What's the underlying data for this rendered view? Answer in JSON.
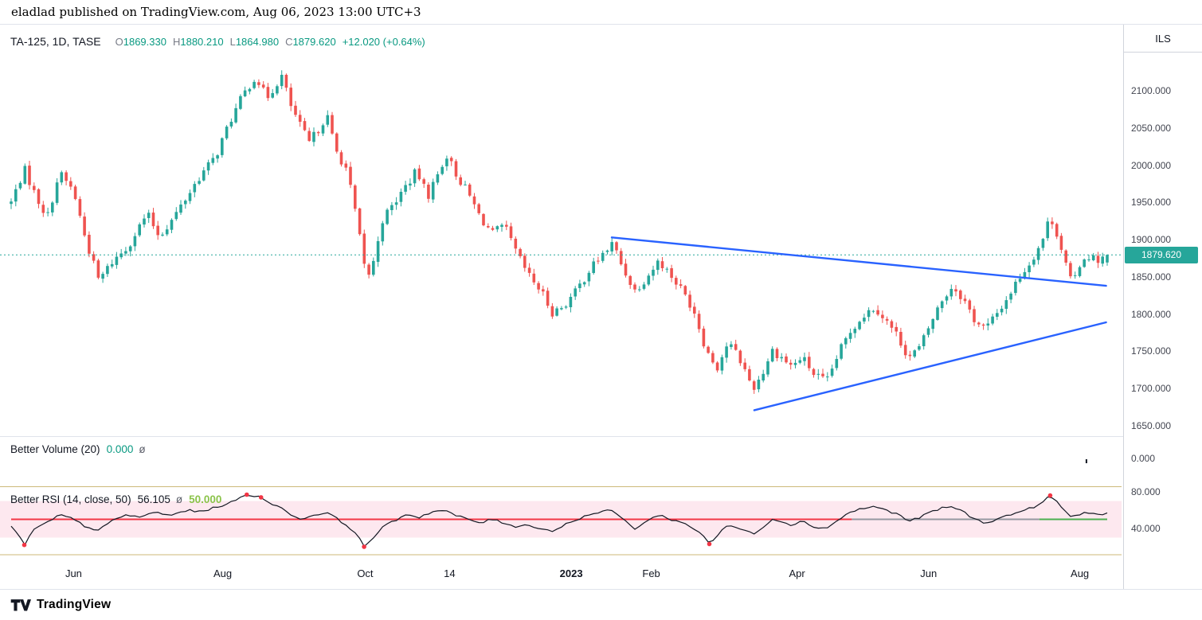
{
  "header": {
    "text": "eladlad published on TradingView.com, Aug 06, 2023 13:00 UTC+3"
  },
  "legend": {
    "symbol": "TA-125, 1D, TASE",
    "ohlc": [
      {
        "label": "O",
        "value": "1869.330"
      },
      {
        "label": "H",
        "value": "1880.210"
      },
      {
        "label": "L",
        "value": "1864.980"
      },
      {
        "label": "C",
        "value": "1879.620"
      }
    ],
    "change": "+12.020 (+0.64%)"
  },
  "price_axis": {
    "currency": "ILS",
    "labels": [
      "2100.000",
      "2050.000",
      "2000.000",
      "1950.000",
      "1900.000",
      "1850.000",
      "1800.000",
      "1750.000",
      "1700.000",
      "1650.000"
    ],
    "last_price": "1879.620"
  },
  "volume_panel": {
    "title": "Better Volume (20)",
    "value": "0.000",
    "avg_symbol": "ø",
    "axis_label": "0.000"
  },
  "rsi_panel": {
    "title": "Better RSI (14, close, 50)",
    "value": "56.105",
    "avg_symbol": "ø",
    "level_value": "50.000",
    "axis_labels": [
      "80.000",
      "40.000"
    ]
  },
  "time_axis": {
    "labels": [
      {
        "text": "Jun",
        "f": 0.057
      },
      {
        "text": "Aug",
        "f": 0.193
      },
      {
        "text": "Oct",
        "f": 0.323
      },
      {
        "text": "14",
        "f": 0.4
      },
      {
        "text": "2023",
        "f": 0.511,
        "bold": true
      },
      {
        "text": "Feb",
        "f": 0.584
      },
      {
        "text": "Apr",
        "f": 0.717
      },
      {
        "text": "Jun",
        "f": 0.837
      },
      {
        "text": "Aug",
        "f": 0.975
      }
    ]
  },
  "footer": {
    "brand": "TradingView"
  },
  "chart_data": {
    "type": "candlestick",
    "title": "TA-125 daily candlestick chart with converging triangle trendlines",
    "symbol": "TA-125",
    "timeframe": "1D",
    "exchange": "TASE",
    "currency": "ILS",
    "grid": false,
    "y_range": [
      1650,
      2100
    ],
    "last": {
      "o": 1869.33,
      "h": 1880.21,
      "l": 1864.98,
      "c": 1879.62,
      "change": 12.02,
      "change_pct": 0.64
    },
    "candle_count": 240,
    "price_path": [
      [
        0.0,
        1950
      ],
      [
        0.012,
        1995
      ],
      [
        0.022,
        1960
      ],
      [
        0.033,
        1930
      ],
      [
        0.044,
        1990
      ],
      [
        0.057,
        1965
      ],
      [
        0.068,
        1900
      ],
      [
        0.08,
        1845
      ],
      [
        0.092,
        1870
      ],
      [
        0.106,
        1890
      ],
      [
        0.118,
        1920
      ],
      [
        0.124,
        1935
      ],
      [
        0.135,
        1905
      ],
      [
        0.146,
        1925
      ],
      [
        0.157,
        1950
      ],
      [
        0.172,
        1985
      ],
      [
        0.186,
        2010
      ],
      [
        0.2,
        2060
      ],
      [
        0.212,
        2095
      ],
      [
        0.223,
        2120
      ],
      [
        0.233,
        2090
      ],
      [
        0.247,
        2120
      ],
      [
        0.255,
        2080
      ],
      [
        0.263,
        2055
      ],
      [
        0.272,
        2030
      ],
      [
        0.281,
        2050
      ],
      [
        0.288,
        2068
      ],
      [
        0.296,
        2020
      ],
      [
        0.306,
        1995
      ],
      [
        0.315,
        1930
      ],
      [
        0.322,
        1865
      ],
      [
        0.328,
        1850
      ],
      [
        0.338,
        1925
      ],
      [
        0.35,
        1950
      ],
      [
        0.36,
        1972
      ],
      [
        0.37,
        1992
      ],
      [
        0.38,
        1958
      ],
      [
        0.39,
        1990
      ],
      [
        0.397,
        2015
      ],
      [
        0.406,
        1988
      ],
      [
        0.417,
        1962
      ],
      [
        0.428,
        1930
      ],
      [
        0.439,
        1908
      ],
      [
        0.45,
        1918
      ],
      [
        0.461,
        1882
      ],
      [
        0.472,
        1852
      ],
      [
        0.483,
        1832
      ],
      [
        0.494,
        1802
      ],
      [
        0.505,
        1812
      ],
      [
        0.516,
        1832
      ],
      [
        0.527,
        1858
      ],
      [
        0.538,
        1878
      ],
      [
        0.549,
        1895
      ],
      [
        0.558,
        1862
      ],
      [
        0.569,
        1832
      ],
      [
        0.58,
        1850
      ],
      [
        0.591,
        1872
      ],
      [
        0.602,
        1852
      ],
      [
        0.613,
        1830
      ],
      [
        0.623,
        1805
      ],
      [
        0.634,
        1752
      ],
      [
        0.644,
        1728
      ],
      [
        0.654,
        1762
      ],
      [
        0.664,
        1742
      ],
      [
        0.677,
        1700
      ],
      [
        0.686,
        1722
      ],
      [
        0.694,
        1752
      ],
      [
        0.703,
        1742
      ],
      [
        0.712,
        1730
      ],
      [
        0.722,
        1742
      ],
      [
        0.732,
        1720
      ],
      [
        0.744,
        1708
      ],
      [
        0.755,
        1748
      ],
      [
        0.766,
        1778
      ],
      [
        0.777,
        1798
      ],
      [
        0.788,
        1810
      ],
      [
        0.798,
        1792
      ],
      [
        0.808,
        1772
      ],
      [
        0.819,
        1742
      ],
      [
        0.829,
        1755
      ],
      [
        0.839,
        1788
      ],
      [
        0.849,
        1818
      ],
      [
        0.859,
        1838
      ],
      [
        0.869,
        1820
      ],
      [
        0.879,
        1792
      ],
      [
        0.889,
        1780
      ],
      [
        0.899,
        1800
      ],
      [
        0.909,
        1822
      ],
      [
        0.919,
        1848
      ],
      [
        0.93,
        1870
      ],
      [
        0.941,
        1900
      ],
      [
        0.948,
        1932
      ],
      [
        0.955,
        1905
      ],
      [
        0.962,
        1868
      ],
      [
        0.968,
        1838
      ],
      [
        0.975,
        1868
      ],
      [
        0.982,
        1880
      ],
      [
        0.99,
        1872
      ],
      [
        1.0,
        1879.62
      ]
    ],
    "trendlines": [
      {
        "x1": 0.548,
        "y1": 1903,
        "x2": 0.999,
        "y2": 1838
      },
      {
        "x1": 0.678,
        "y1": 1671,
        "x2": 0.999,
        "y2": 1789
      }
    ],
    "rsi": {
      "range": [
        0,
        100
      ],
      "band": [
        30,
        70
      ],
      "midline": 50,
      "value": 56.105,
      "path": [
        [
          0.0,
          42
        ],
        [
          0.008,
          30
        ],
        [
          0.012,
          22
        ],
        [
          0.02,
          38
        ],
        [
          0.032,
          46
        ],
        [
          0.045,
          55
        ],
        [
          0.057,
          50
        ],
        [
          0.068,
          42
        ],
        [
          0.08,
          38
        ],
        [
          0.092,
          48
        ],
        [
          0.104,
          55
        ],
        [
          0.118,
          52
        ],
        [
          0.13,
          58
        ],
        [
          0.145,
          54
        ],
        [
          0.16,
          60
        ],
        [
          0.172,
          58
        ],
        [
          0.186,
          63
        ],
        [
          0.2,
          68
        ],
        [
          0.215,
          77
        ],
        [
          0.228,
          74
        ],
        [
          0.24,
          66
        ],
        [
          0.252,
          58
        ],
        [
          0.263,
          50
        ],
        [
          0.275,
          54
        ],
        [
          0.287,
          58
        ],
        [
          0.298,
          50
        ],
        [
          0.308,
          42
        ],
        [
          0.315,
          34
        ],
        [
          0.322,
          20
        ],
        [
          0.33,
          30
        ],
        [
          0.34,
          42
        ],
        [
          0.352,
          50
        ],
        [
          0.362,
          56
        ],
        [
          0.372,
          52
        ],
        [
          0.383,
          58
        ],
        [
          0.395,
          60
        ],
        [
          0.406,
          54
        ],
        [
          0.417,
          50
        ],
        [
          0.428,
          46
        ],
        [
          0.439,
          50
        ],
        [
          0.45,
          46
        ],
        [
          0.461,
          42
        ],
        [
          0.472,
          44
        ],
        [
          0.483,
          40
        ],
        [
          0.494,
          37
        ],
        [
          0.505,
          44
        ],
        [
          0.516,
          50
        ],
        [
          0.527,
          55
        ],
        [
          0.538,
          58
        ],
        [
          0.549,
          60
        ],
        [
          0.558,
          50
        ],
        [
          0.569,
          40
        ],
        [
          0.58,
          48
        ],
        [
          0.591,
          55
        ],
        [
          0.602,
          50
        ],
        [
          0.613,
          46
        ],
        [
          0.623,
          40
        ],
        [
          0.634,
          30
        ],
        [
          0.637,
          23
        ],
        [
          0.644,
          32
        ],
        [
          0.654,
          44
        ],
        [
          0.664,
          40
        ],
        [
          0.677,
          34
        ],
        [
          0.686,
          42
        ],
        [
          0.694,
          50
        ],
        [
          0.703,
          48
        ],
        [
          0.712,
          44
        ],
        [
          0.722,
          48
        ],
        [
          0.732,
          42
        ],
        [
          0.744,
          40
        ],
        [
          0.755,
          50
        ],
        [
          0.766,
          58
        ],
        [
          0.777,
          62
        ],
        [
          0.788,
          64
        ],
        [
          0.798,
          60
        ],
        [
          0.808,
          56
        ],
        [
          0.819,
          48
        ],
        [
          0.829,
          52
        ],
        [
          0.839,
          58
        ],
        [
          0.849,
          62
        ],
        [
          0.859,
          64
        ],
        [
          0.869,
          58
        ],
        [
          0.879,
          50
        ],
        [
          0.889,
          46
        ],
        [
          0.899,
          50
        ],
        [
          0.909,
          54
        ],
        [
          0.919,
          58
        ],
        [
          0.93,
          62
        ],
        [
          0.941,
          68
        ],
        [
          0.948,
          76
        ],
        [
          0.955,
          68
        ],
        [
          0.962,
          58
        ],
        [
          0.968,
          52
        ],
        [
          0.975,
          56
        ],
        [
          0.982,
          58
        ],
        [
          0.99,
          55
        ],
        [
          1.0,
          56.1
        ]
      ],
      "dots": [
        [
          0.012,
          22
        ],
        [
          0.215,
          77
        ],
        [
          0.228,
          74
        ],
        [
          0.322,
          20
        ],
        [
          0.637,
          23
        ],
        [
          0.948,
          76
        ]
      ],
      "mid_segments": [
        {
          "f1": 0.0,
          "f2": 0.767,
          "color": "#f23645"
        },
        {
          "f1": 0.767,
          "f2": 0.938,
          "color": "#9598a1"
        },
        {
          "f1": 0.938,
          "f2": 1.0,
          "color": "#4caf50"
        }
      ]
    },
    "volume": {
      "value": 0,
      "tick_f": 0.981
    },
    "colors": {
      "up": "#26a69a",
      "down": "#ef5350",
      "legend_value": "#089981",
      "trendline": "#2962ff",
      "rsi_line": "#131722",
      "rsi_dot": "#f23645",
      "band": "rgba(233,30,99,0.10)",
      "mid_red": "#f23645",
      "mid_gray": "#9598a1",
      "mid_green": "#4caf50",
      "gold": "#cdb97a",
      "last_price_bg": "#26a69a"
    }
  }
}
